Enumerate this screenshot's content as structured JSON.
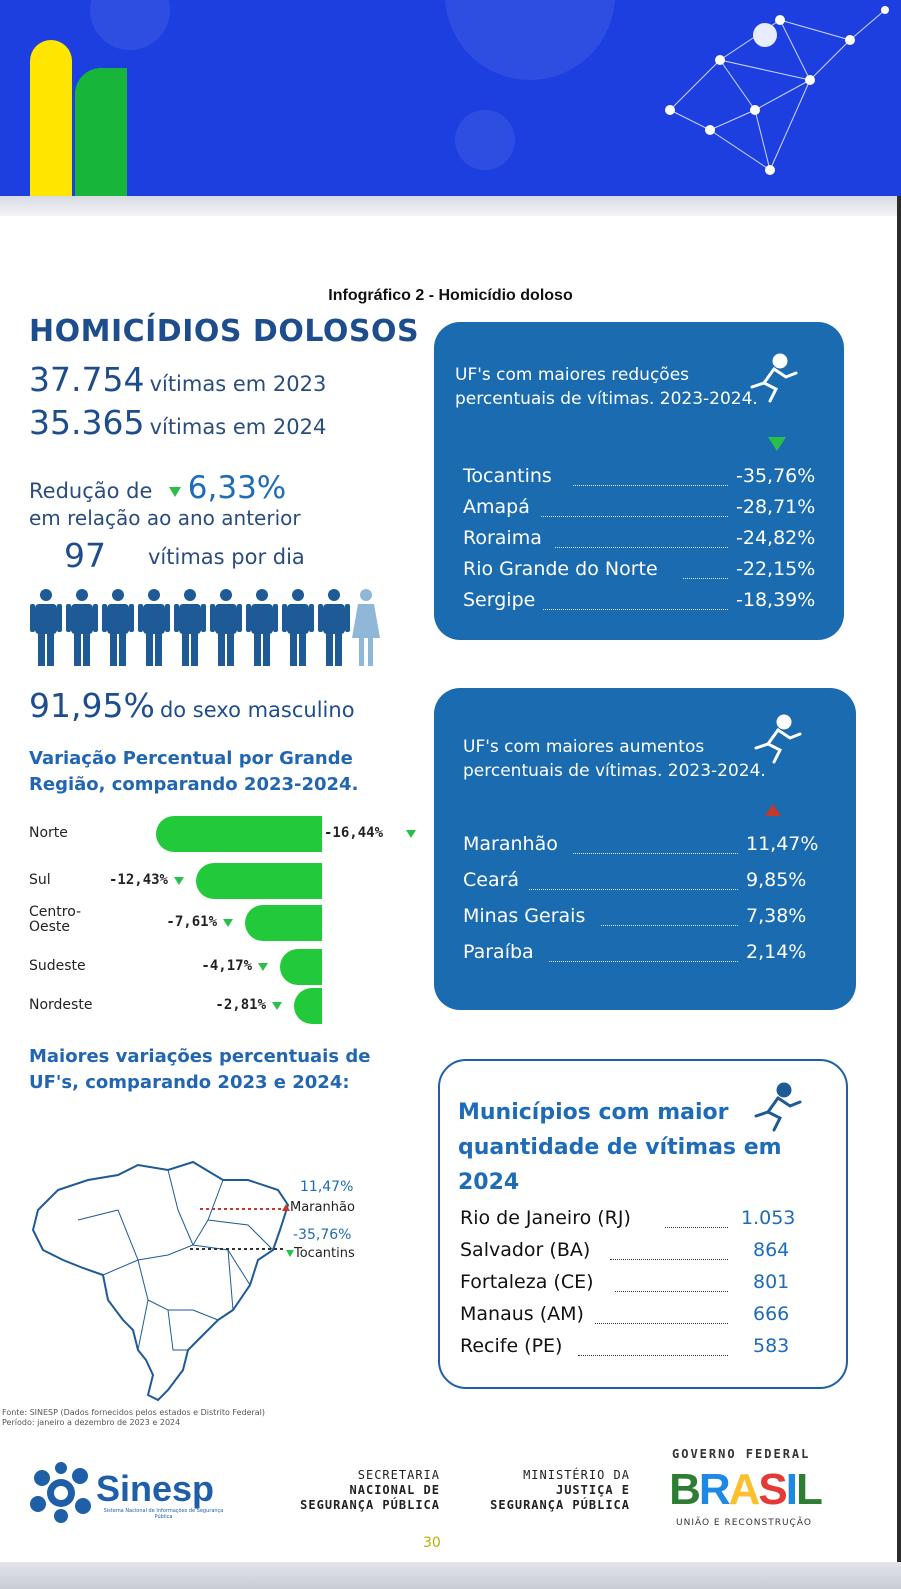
{
  "infographic_title": "Infográfico 2 - Homicídio doloso",
  "main_title": "HOMICÍDIOS DOLOSOS",
  "stats": {
    "victims_2023_num": "37.754",
    "victims_2023_txt": "vítimas em 2023",
    "victims_2024_num": "35.365",
    "victims_2024_txt": "vítimas em 2024",
    "reduction_prefix": "Redução de",
    "reduction_pct": "6,33%",
    "reduction_suffix": "em relação ao ano anterior",
    "per_day_num": "97",
    "per_day_txt": "vítimas por dia",
    "male_pct": "91,95%",
    "male_txt": "do sexo masculino"
  },
  "regional": {
    "title": "Variação Percentual por Grande Região, comparando 2023-2024.",
    "rows": [
      {
        "label": "Norte",
        "value": "-16,44%",
        "pct": 16.44
      },
      {
        "label": "Sul",
        "value": "-12,43%",
        "pct": 12.43
      },
      {
        "label": "Centro-Oeste",
        "value": "-7,61%",
        "pct": 7.61
      },
      {
        "label": "Sudeste",
        "value": "-4,17%",
        "pct": 4.17
      },
      {
        "label": "Nordeste",
        "value": "-2,81%",
        "pct": 2.81
      }
    ]
  },
  "uf_variation": {
    "title": "Maiores variações percentuais de UF's, comparando 2023 e 2024:",
    "max_value": "11,47%",
    "max_label": "Maranhão",
    "min_value": "-35,76%",
    "min_label": "Tocantins"
  },
  "reductions_card": {
    "title": "UF's com maiores reduções percentuais de vítimas. 2023-2024.",
    "rows": [
      {
        "name": "Tocantins",
        "value": "-35,76%"
      },
      {
        "name": "Amapá",
        "value": "-28,71%"
      },
      {
        "name": "Roraima",
        "value": "-24,82%"
      },
      {
        "name": "Rio Grande do Norte",
        "value": "-22,15%"
      },
      {
        "name": "Sergipe",
        "value": "-18,39%"
      }
    ]
  },
  "increases_card": {
    "title": "UF's com maiores aumentos percentuais de vítimas. 2023-2024.",
    "rows": [
      {
        "name": "Maranhão",
        "value": "11,47%"
      },
      {
        "name": "Ceará",
        "value": "9,85%"
      },
      {
        "name": "Minas Gerais",
        "value": "7,38%"
      },
      {
        "name": "Paraíba",
        "value": "2,14%"
      }
    ]
  },
  "municipalities_card": {
    "title": "Municípios com maior quantidade de vítimas em 2024",
    "rows": [
      {
        "name": "Rio de Janeiro (RJ)",
        "value": "1.053"
      },
      {
        "name": "Salvador (BA)",
        "value": "864"
      },
      {
        "name": "Fortaleza (CE)",
        "value": "801"
      },
      {
        "name": "Manaus (AM)",
        "value": "666"
      },
      {
        "name": "Recife (PE)",
        "value": "583"
      }
    ]
  },
  "source": {
    "line1": "Fonte: SINESP (Dados fornecidos pelos estados e Distrito Federal)",
    "line2": "Período: janeiro a dezembro de 2023 e 2024"
  },
  "footer": {
    "sinesp": "Sinesp",
    "sinesp_sub": "Sistema Nacional de Informações de Segurança Pública",
    "secretaria": [
      "SECRETARIA",
      "NACIONAL DE",
      "SEGURANÇA PÚBLICA"
    ],
    "ministerio": [
      "MINISTÉRIO DA",
      "JUSTIÇA E",
      "SEGURANÇA PÚBLICA"
    ],
    "gov_top": "GOVERNO FEDERAL",
    "gov_logo": "BRASIL",
    "gov_bottom": "UNIÃO E RECONSTRUÇÃO",
    "page_number": "30"
  },
  "colors": {
    "header_blue": "#1d3fe0",
    "card_blue": "#1a6bb0",
    "accent_green": "#22c93a",
    "title_blue": "#1e4d8e",
    "up_red": "#c0392b"
  }
}
